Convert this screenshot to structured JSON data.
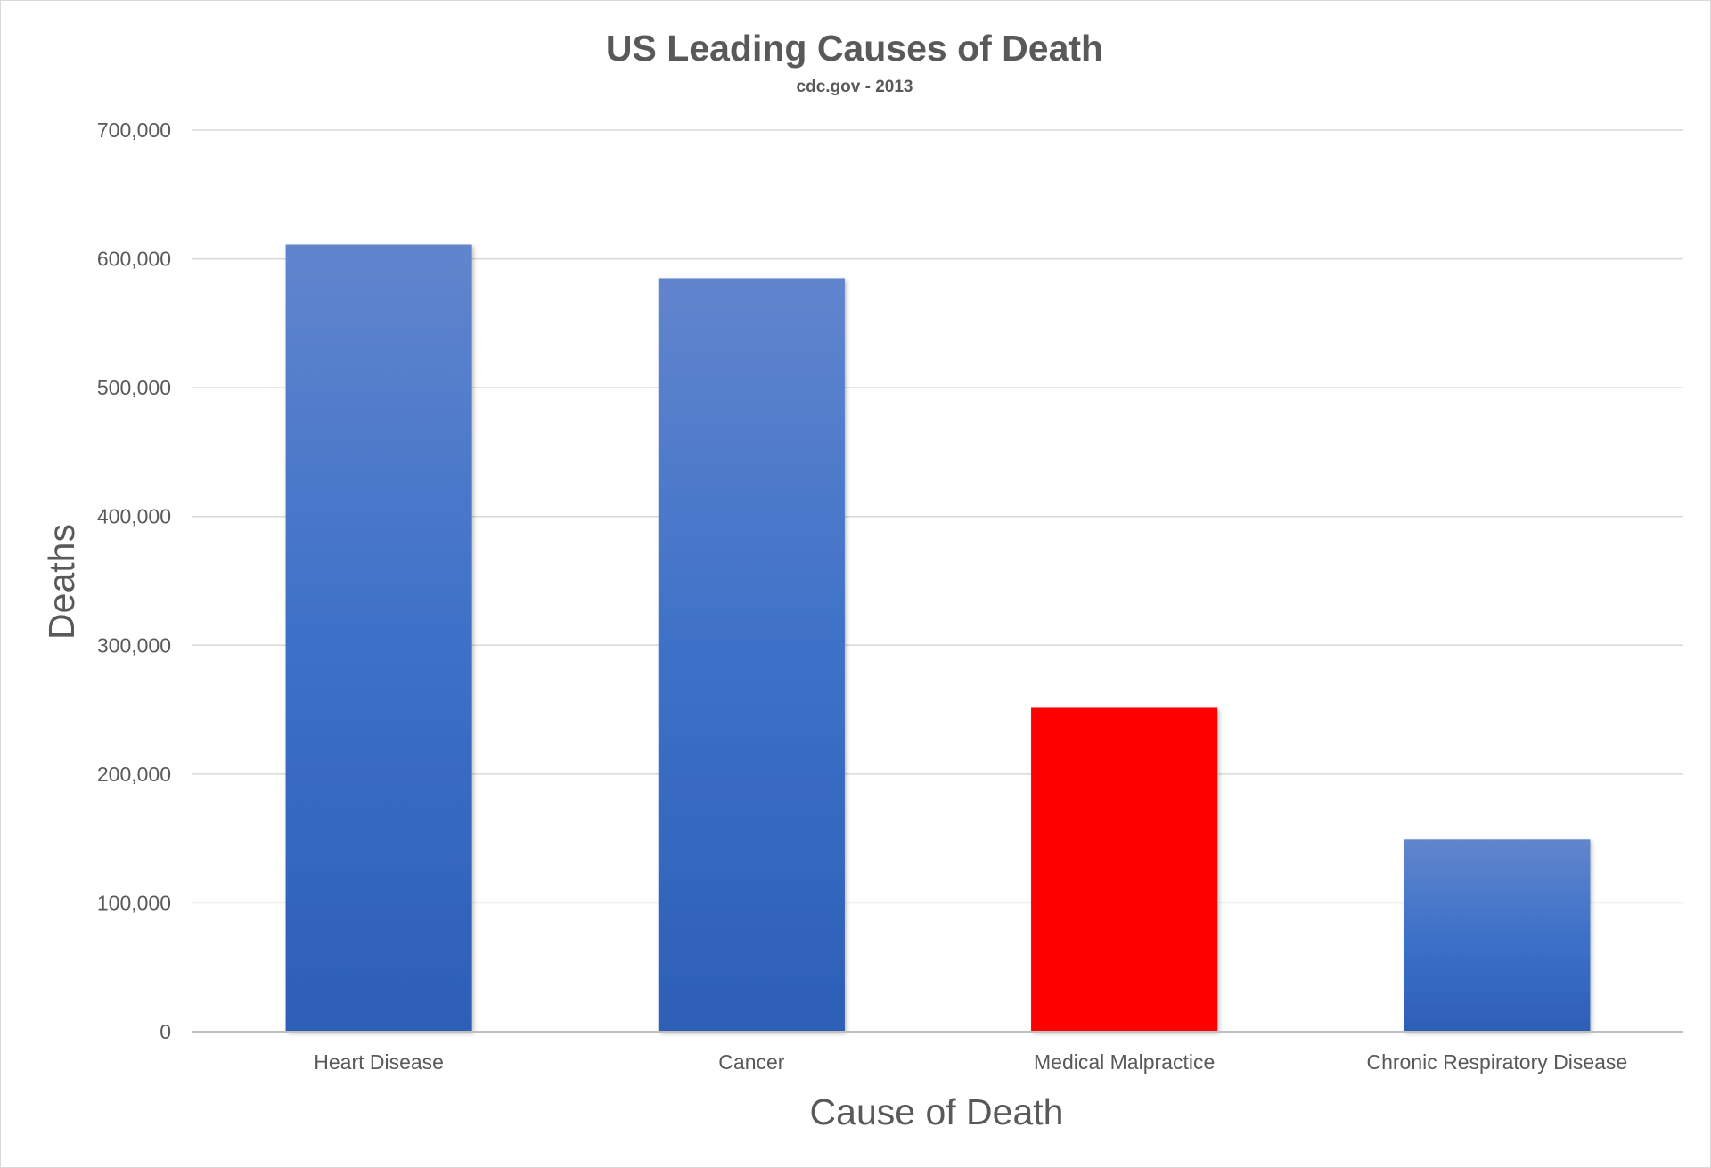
{
  "chart_data": {
    "type": "bar",
    "title": "US Leading Causes of Death",
    "subtitle": "cdc.gov - 2013",
    "xlabel": "Cause of Death",
    "ylabel": "Deaths",
    "categories": [
      "Heart Disease",
      "Cancer",
      "Medical Malpractice",
      "Chronic Respiratory Disease"
    ],
    "values": [
      611105,
      584881,
      251454,
      149205
    ],
    "bar_colors": [
      "#4472C4",
      "#4472C4",
      "#FF0000",
      "#4472C4"
    ],
    "ylim": [
      0,
      700000
    ],
    "yticks": [
      0,
      100000,
      200000,
      300000,
      400000,
      500000,
      600000,
      700000
    ],
    "ytick_labels": [
      "0",
      "100,000",
      "200,000",
      "300,000",
      "400,000",
      "500,000",
      "600,000",
      "700,000"
    ],
    "grid": true,
    "legend": "none"
  }
}
